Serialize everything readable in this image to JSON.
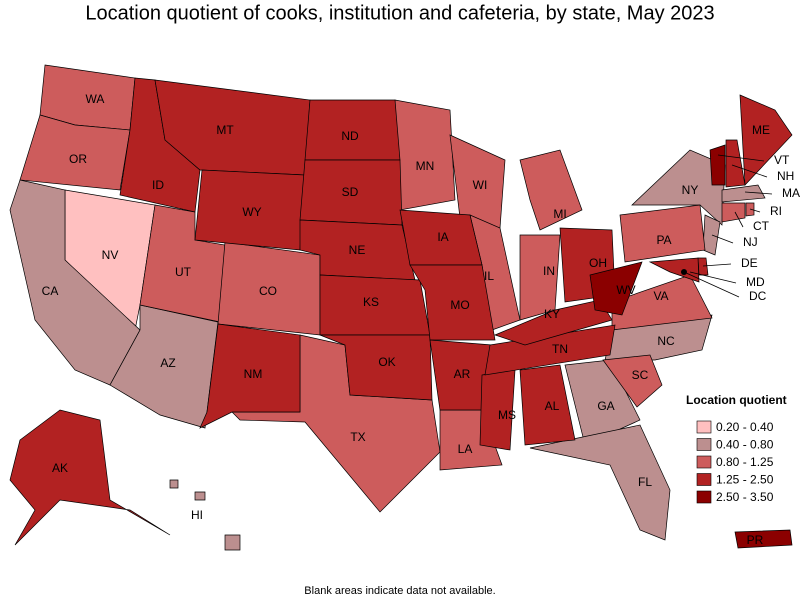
{
  "title": "Location quotient of cooks, institution and cafeteria, by state, May 2023",
  "legend": {
    "title": "Location quotient",
    "items": [
      {
        "label": "0.20 - 0.40",
        "color": "#ffc0c0",
        "states": [
          "NV"
        ]
      },
      {
        "label": "0.40 - 0.80",
        "color": "#bc8f8f",
        "states": [
          "CA",
          "AZ",
          "NY",
          "GA",
          "FL",
          "NC",
          "MA",
          "HI",
          "NJ"
        ]
      },
      {
        "label": "0.80 - 1.25",
        "color": "#cd5c5c",
        "states": [
          "WA",
          "OR",
          "UT",
          "CO",
          "TX",
          "MN",
          "WI",
          "MI",
          "IL",
          "IN",
          "PA",
          "VA",
          "SC",
          "LA",
          "CT",
          "RI"
        ]
      },
      {
        "label": "1.25 - 2.50",
        "color": "#b22222",
        "states": [
          "ID",
          "MT",
          "WY",
          "ND",
          "SD",
          "NE",
          "KS",
          "OK",
          "NM",
          "IA",
          "MO",
          "AR",
          "MS",
          "AL",
          "TN",
          "KY",
          "OH",
          "AK",
          "ME",
          "NH",
          "DE",
          "MD",
          "DC"
        ]
      },
      {
        "label": "2.50 - 3.50",
        "color": "#8b0000",
        "states": [
          "WV",
          "VT",
          "PR"
        ]
      }
    ]
  },
  "footnote": "Blank areas indicate data not available."
}
